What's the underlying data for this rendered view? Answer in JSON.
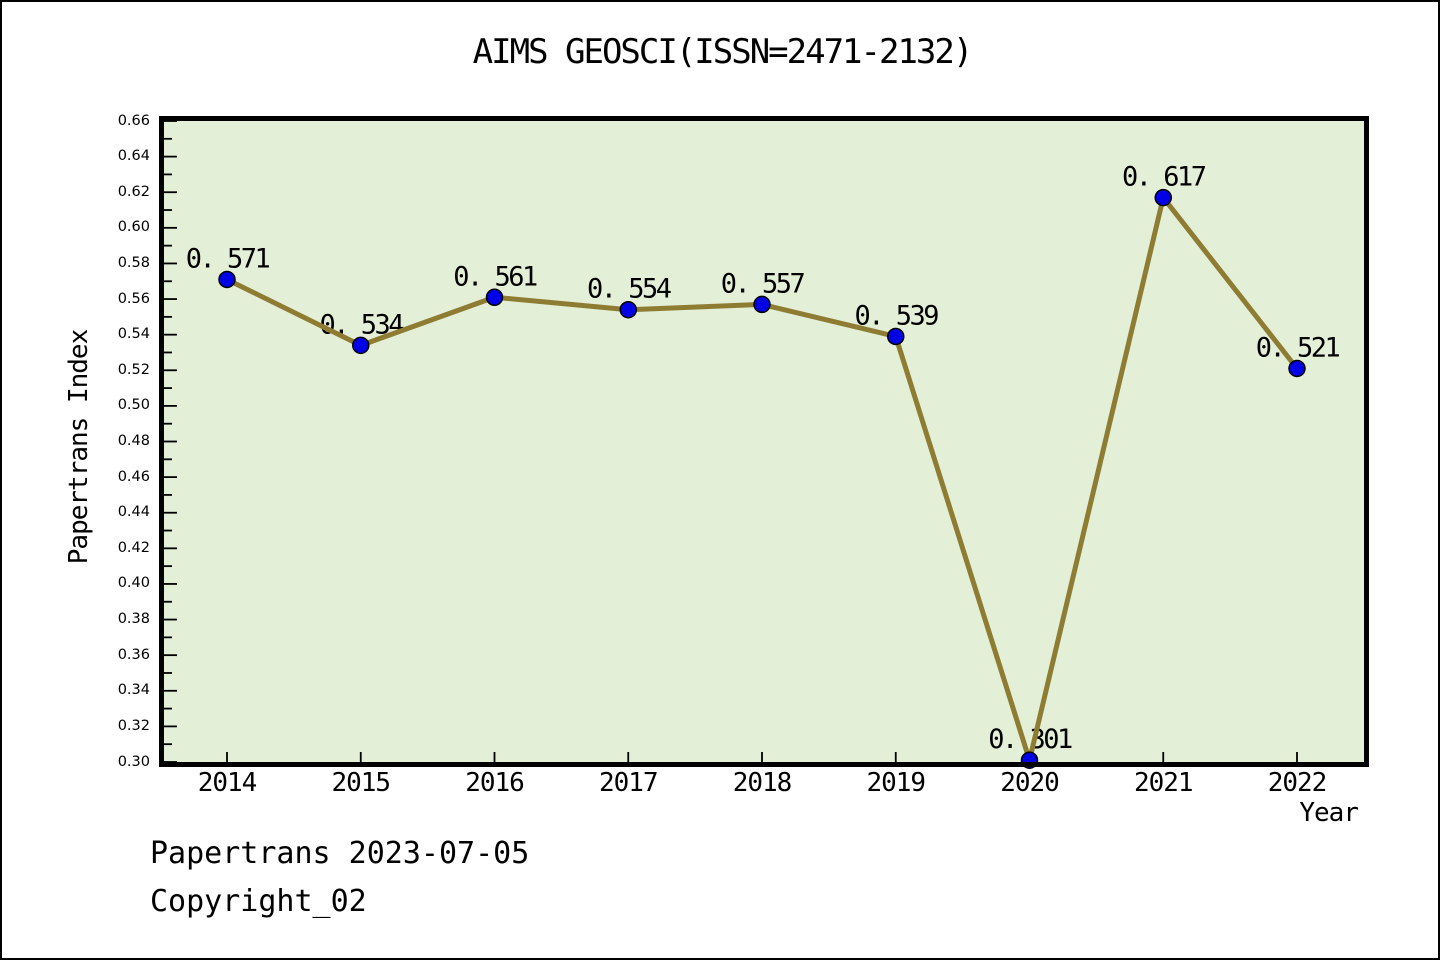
{
  "footer": {
    "line1": "Papertrans 2023-07-05",
    "line2": "Copyright_02"
  },
  "chart_data": {
    "type": "line",
    "title": "AIMS GEOSCI(ISSN=2471-2132)",
    "xlabel": "Year",
    "ylabel": "Papertrans Index",
    "categories": [
      "2014",
      "2015",
      "2016",
      "2017",
      "2018",
      "2019",
      "2020",
      "2021",
      "2022"
    ],
    "values": [
      0.571,
      0.534,
      0.561,
      0.554,
      0.557,
      0.539,
      0.301,
      0.617,
      0.521
    ],
    "point_labels": [
      "0. 571",
      "0. 534",
      "0. 561",
      "0. 554",
      "0. 557",
      "0. 539",
      "0. 301",
      "0. 617",
      "0. 521"
    ],
    "series": [
      {
        "name": "Papertrans Index",
        "values": [
          0.571,
          0.534,
          0.561,
          0.554,
          0.557,
          0.539,
          0.301,
          0.617,
          0.521
        ]
      }
    ],
    "ylim": [
      0.3,
      0.66
    ],
    "ytick_major_step": 0.02,
    "ytick_minor_step": 0.01,
    "yticks": [
      "0.66",
      "0.64",
      "0.62",
      "0.60",
      "0.58",
      "0.56",
      "0.54",
      "0.52",
      "0.50",
      "0.48",
      "0.46",
      "0.44",
      "0.42",
      "0.40",
      "0.38",
      "0.36",
      "0.34",
      "0.32",
      "0.30"
    ],
    "grid": "off",
    "legend": "none",
    "colors": {
      "line": "#8e7c33",
      "marker": "#0000e6",
      "marker_edge": "#000000",
      "plot_bg": "#e3efd6",
      "axis": "#000000",
      "text": "#000000",
      "figure_bg": "#ffffff"
    }
  }
}
